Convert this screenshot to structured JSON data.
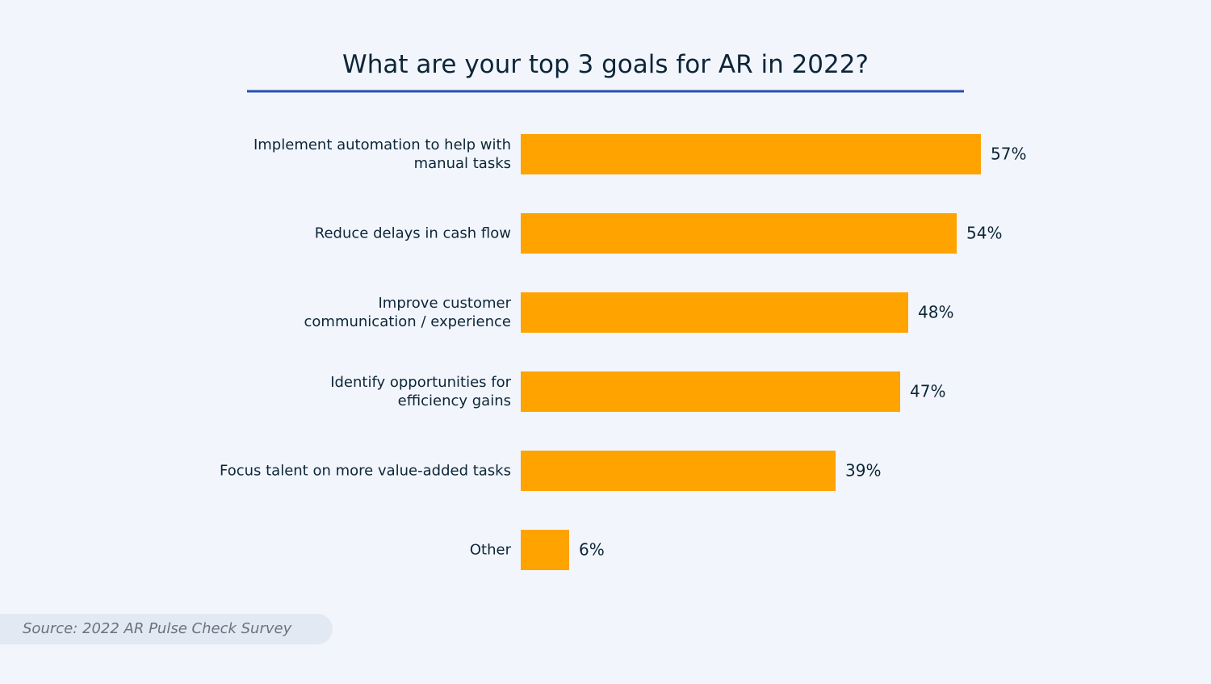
{
  "chart_data": {
    "type": "bar",
    "orientation": "horizontal",
    "title": "What are your top 3 goals for AR in 2022?",
    "categories": [
      "Implement automation to help with\nmanual tasks",
      "Reduce delays in cash flow",
      "Improve customer\ncommunication / experience",
      "Identify opportunities for\nefficiency gains",
      "Focus talent on more value-added tasks",
      "Other"
    ],
    "values": [
      57,
      54,
      48,
      47,
      39,
      6
    ],
    "value_labels": [
      "57%",
      "54%",
      "48%",
      "47%",
      "39%",
      "6%"
    ],
    "color": "#ffa300",
    "source": "Source: 2022 AR Pulse Check Survey"
  }
}
